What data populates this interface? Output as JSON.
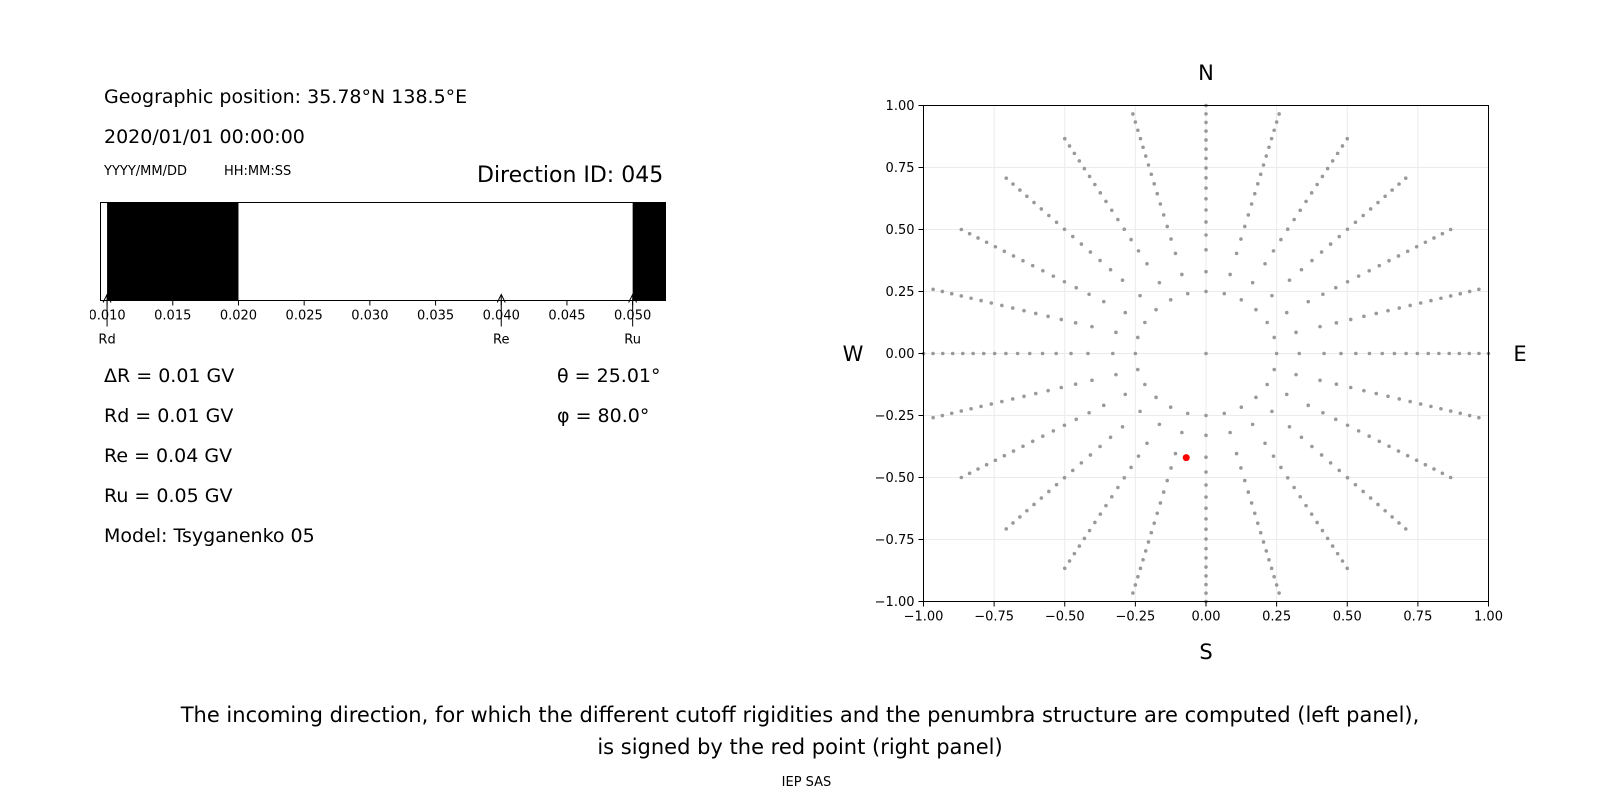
{
  "info": {
    "geo_position": "Geographic position: 35.78°N 138.5°E",
    "datetime": "2020/01/01 00:00:00",
    "date_format": "YYYY/MM/DD",
    "time_format": "HH:MM:SS",
    "direction_id": "Direction ID: 045"
  },
  "params": {
    "delta_r": "ΔR = 0.01 GV",
    "rd": "Rd = 0.01 GV",
    "re": "Re = 0.04 GV",
    "ru": "Ru = 0.05 GV",
    "model": "Model: Tsyganenko 05",
    "theta": "θ = 25.01°",
    "phi": "φ = 80.0°"
  },
  "caption": {
    "line1": "The incoming direction, for which the different cutoff rigidities and the penumbra structure are computed (left panel),",
    "line2": "is signed by the red point (right panel)",
    "footer": "IEP SAS"
  },
  "chart_data": [
    {
      "type": "bar",
      "description": "penumbra structure",
      "xlim": [
        0.0095,
        0.0525
      ],
      "ticks": [
        "0.010",
        "0.015",
        "0.020",
        "0.025",
        "0.030",
        "0.035",
        "0.040",
        "0.045",
        "0.050"
      ],
      "tick_values": [
        0.01,
        0.015,
        0.02,
        0.025,
        0.03,
        0.035,
        0.04,
        0.045,
        0.05
      ],
      "forbidden_bands": [
        [
          0.01,
          0.02
        ],
        [
          0.05,
          0.0525
        ]
      ],
      "markers": [
        {
          "label": "Rd",
          "value": 0.01
        },
        {
          "label": "Re",
          "value": 0.04
        },
        {
          "label": "Ru",
          "value": 0.05
        }
      ],
      "colors": {
        "forbidden": "#000000",
        "allowed": "#ffffff"
      }
    },
    {
      "type": "scatter",
      "xlim": [
        -1.0,
        1.0
      ],
      "ylim": [
        -1.0,
        1.0
      ],
      "xticks": [
        "−1.00",
        "−0.75",
        "−0.50",
        "−0.25",
        "0.00",
        "0.25",
        "0.50",
        "0.75",
        "1.00"
      ],
      "yticks": [
        "1.00",
        "0.75",
        "0.50",
        "0.25",
        "0.00",
        "−0.25",
        "−0.50",
        "−0.75",
        "−1.00"
      ],
      "tick_values": [
        -1.0,
        -0.75,
        -0.5,
        -0.25,
        0.0,
        0.25,
        0.5,
        0.75,
        1.0
      ],
      "grid": true,
      "directions": {
        "n": "N",
        "s": "S",
        "e": "E",
        "w": "W"
      },
      "grid_pattern": {
        "inner_ring_radius": 0.25,
        "inner_ring_points": 24,
        "spoke_count": 24,
        "spoke_min_radius": 0.33,
        "spoke_max_radius": 1.0,
        "spoke_points": 16
      },
      "highlight_point": {
        "x": -0.07,
        "y": -0.42
      },
      "colors": {
        "points": "#999999",
        "highlight": "#ff0000"
      }
    }
  ]
}
